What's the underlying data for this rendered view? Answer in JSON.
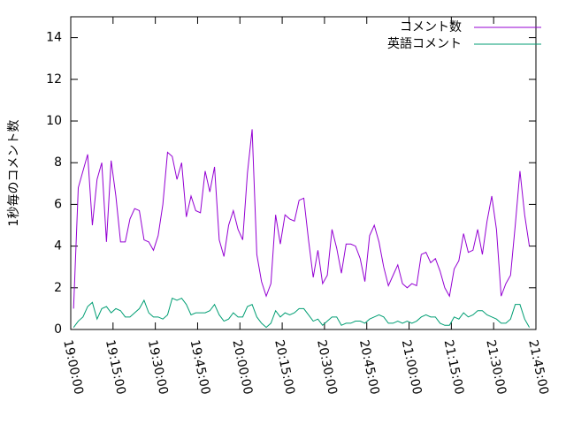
{
  "chart_data": {
    "type": "line",
    "y_label": "1秒毎のコメント数",
    "xlim": [
      "19:00:00",
      "21:45:00"
    ],
    "xticks": [
      "19:00:00",
      "19:15:00",
      "19:30:00",
      "19:45:00",
      "20:00:00",
      "20:15:00",
      "20:30:00",
      "20:45:00",
      "21:00:00",
      "21:15:00",
      "21:30:00",
      "21:45:00"
    ],
    "ylim": [
      0,
      15
    ],
    "yticks": [
      0,
      2,
      4,
      6,
      8,
      10,
      12,
      14
    ],
    "legend": "top-right",
    "x": [
      "19:01:00",
      "19:02:40",
      "19:04:20",
      "19:06:00",
      "19:07:40",
      "19:09:20",
      "19:11:00",
      "19:12:40",
      "19:14:20",
      "19:16:00",
      "19:17:40",
      "19:19:20",
      "19:21:00",
      "19:22:40",
      "19:24:20",
      "19:26:00",
      "19:27:40",
      "19:29:20",
      "19:31:00",
      "19:32:40",
      "19:34:20",
      "19:36:00",
      "19:37:40",
      "19:39:20",
      "19:41:00",
      "19:42:40",
      "19:44:20",
      "19:46:00",
      "19:47:40",
      "19:49:20",
      "19:51:00",
      "19:52:40",
      "19:54:20",
      "19:56:00",
      "19:57:40",
      "19:59:20",
      "20:01:00",
      "20:02:40",
      "20:04:20",
      "20:06:00",
      "20:07:40",
      "20:09:20",
      "20:11:00",
      "20:12:40",
      "20:14:20",
      "20:16:00",
      "20:17:40",
      "20:19:20",
      "20:21:00",
      "20:22:40",
      "20:24:20",
      "20:26:00",
      "20:27:40",
      "20:29:20",
      "20:31:00",
      "20:32:40",
      "20:34:20",
      "20:36:00",
      "20:37:40",
      "20:39:20",
      "20:41:00",
      "20:42:40",
      "20:44:20",
      "20:46:00",
      "20:47:40",
      "20:49:20",
      "20:51:00",
      "20:52:40",
      "20:54:20",
      "20:56:00",
      "20:57:40",
      "20:59:20",
      "21:01:00",
      "21:02:40",
      "21:04:20",
      "21:06:00",
      "21:07:40",
      "21:09:20",
      "21:11:00",
      "21:12:40",
      "21:14:20",
      "21:16:00",
      "21:17:40",
      "21:19:20",
      "21:21:00",
      "21:22:40",
      "21:24:20",
      "21:26:00",
      "21:27:40",
      "21:29:20",
      "21:31:00",
      "21:32:40",
      "21:34:20",
      "21:36:00",
      "21:37:40",
      "21:39:20",
      "21:41:00",
      "21:42:40"
    ],
    "series": [
      {
        "name": "コメント数",
        "color": "#9400d3",
        "values": [
          1.0,
          6.8,
          7.6,
          8.4,
          5.0,
          7.2,
          8.0,
          4.2,
          8.1,
          6.4,
          4.2,
          4.2,
          5.3,
          5.8,
          5.7,
          4.3,
          4.2,
          3.8,
          4.5,
          6.0,
          8.5,
          8.3,
          7.2,
          8.0,
          5.4,
          6.4,
          5.7,
          5.6,
          7.6,
          6.6,
          7.8,
          4.3,
          3.5,
          5.0,
          5.7,
          4.8,
          4.3,
          7.5,
          9.6,
          3.6,
          2.3,
          1.6,
          2.2,
          5.5,
          4.1,
          5.5,
          5.3,
          5.2,
          6.2,
          6.3,
          4.3,
          2.5,
          3.8,
          2.2,
          2.6,
          4.8,
          3.9,
          2.7,
          4.1,
          4.1,
          4.0,
          3.4,
          2.3,
          4.5,
          5.0,
          4.2,
          3.0,
          2.1,
          2.6,
          3.1,
          2.2,
          2.0,
          2.2,
          2.1,
          3.6,
          3.7,
          3.2,
          3.4,
          2.8,
          2.0,
          1.6,
          2.9,
          3.3,
          4.6,
          3.7,
          3.8,
          4.8,
          3.6,
          5.2,
          6.4,
          4.8,
          1.6,
          2.2,
          2.6,
          5.0,
          7.6,
          5.5,
          4.0
        ]
      },
      {
        "name": "英語コメント",
        "color": "#009e73",
        "values": [
          0.1,
          0.4,
          0.6,
          1.1,
          1.3,
          0.5,
          1.0,
          1.1,
          0.8,
          1.0,
          0.9,
          0.6,
          0.6,
          0.8,
          1.0,
          1.4,
          0.8,
          0.6,
          0.6,
          0.5,
          0.7,
          1.5,
          1.4,
          1.5,
          1.2,
          0.7,
          0.8,
          0.8,
          0.8,
          0.9,
          1.2,
          0.7,
          0.4,
          0.5,
          0.8,
          0.6,
          0.6,
          1.1,
          1.2,
          0.6,
          0.3,
          0.1,
          0.3,
          0.9,
          0.6,
          0.8,
          0.7,
          0.8,
          1.0,
          1.0,
          0.7,
          0.4,
          0.5,
          0.2,
          0.4,
          0.6,
          0.6,
          0.2,
          0.3,
          0.3,
          0.4,
          0.4,
          0.3,
          0.5,
          0.6,
          0.7,
          0.6,
          0.3,
          0.3,
          0.4,
          0.3,
          0.4,
          0.3,
          0.4,
          0.6,
          0.7,
          0.6,
          0.6,
          0.3,
          0.2,
          0.2,
          0.6,
          0.5,
          0.8,
          0.6,
          0.7,
          0.9,
          0.9,
          0.7,
          0.6,
          0.5,
          0.3,
          0.3,
          0.5,
          1.2,
          1.2,
          0.5,
          0.1
        ]
      }
    ]
  }
}
